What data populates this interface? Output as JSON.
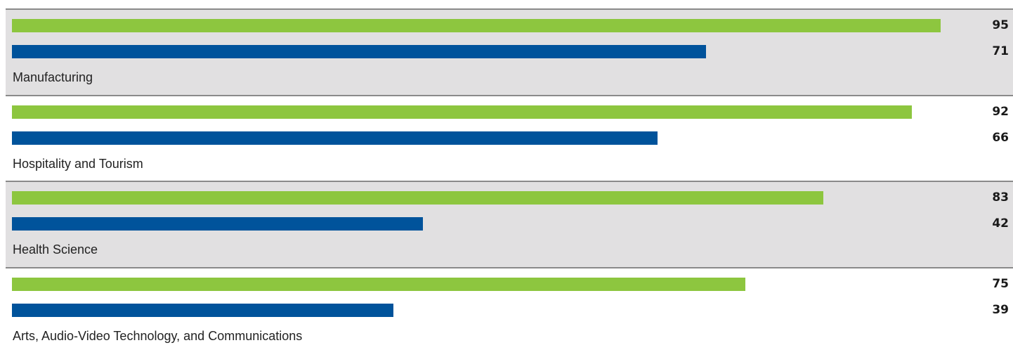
{
  "chart_data": {
    "type": "bar",
    "orientation": "horizontal",
    "categories": [
      "Manufacturing",
      "Hospitality and Tourism",
      "Health Science",
      "Arts, Audio-Video Technology, and Communications"
    ],
    "series": [
      {
        "values": [
          95,
          92,
          83,
          75
        ],
        "color": "#8dc63f"
      },
      {
        "values": [
          71,
          66,
          42,
          39
        ],
        "color": "#00539b"
      }
    ],
    "xlim": [
      0,
      100
    ],
    "alternating_row_shading": "#e1e0e1",
    "grid": false,
    "legend": "none"
  }
}
